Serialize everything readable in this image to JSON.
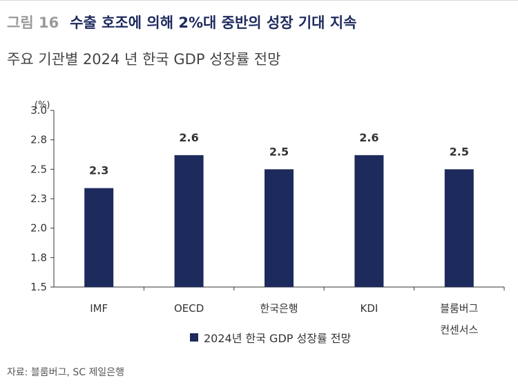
{
  "figure": {
    "number": "그림 16",
    "title": "수출 호조에 의해 2%대 중반의 성장 기대 지속",
    "subtitle": "주요 기관별 2024 년 한국 GDP 성장률 전망",
    "source": "자료: 블룸버그, SC 제일은행"
  },
  "chart_data": {
    "type": "bar",
    "categories": [
      "IMF",
      "OECD",
      "한국은행",
      "KDI",
      "블룸버그\n컨센서스"
    ],
    "category_lines": [
      [
        "IMF"
      ],
      [
        "OECD"
      ],
      [
        "한국은행"
      ],
      [
        "KDI"
      ],
      [
        "블룸버그",
        "컨센서스"
      ]
    ],
    "series": [
      {
        "name": "2024년 한국 GDP 성장률 전망",
        "values": [
          2.34,
          2.62,
          2.5,
          2.62,
          2.5
        ]
      }
    ],
    "data_labels": [
      "2.3",
      "2.6",
      "2.5",
      "2.6",
      "2.5"
    ],
    "yunit": "(%)",
    "ylim": [
      1.5,
      3.0
    ],
    "yticks": [
      "1.5",
      "1.8",
      "2.0",
      "2.3",
      "2.5",
      "2.8",
      "3.0"
    ],
    "ytick_values": [
      1.5,
      1.75,
      2.0,
      2.25,
      2.5,
      2.75,
      3.0
    ],
    "grid": false,
    "legend_position": "bottom-center",
    "bar_color": "#1d2a5c"
  }
}
